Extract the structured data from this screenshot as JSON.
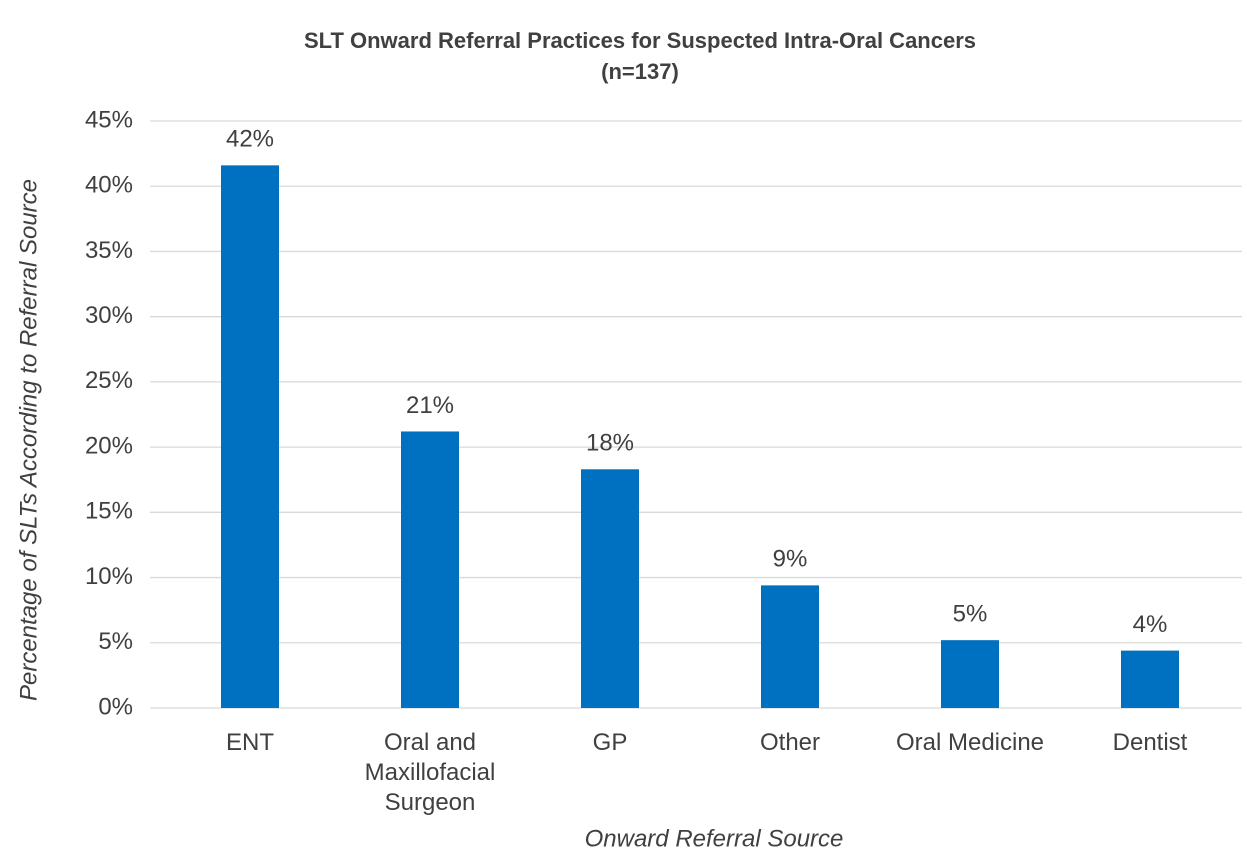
{
  "chart_data": {
    "type": "bar",
    "title": "SLT Onward Referral Practices for Suspected Intra-Oral Cancers",
    "subtitle": "(n=137)",
    "x_label": "Onward Referral Source",
    "y_label": "Percentage of SLTs According to Referral Source",
    "categories": [
      "ENT",
      "Oral and Maxillofacial Surgeon",
      "GP",
      "Other",
      "Oral Medicine",
      "Dentist"
    ],
    "values": [
      41.6,
      21.2,
      18.3,
      9.4,
      5.2,
      4.4
    ],
    "value_labels": [
      "42%",
      "21%",
      "18%",
      "9%",
      "5%",
      "4%"
    ],
    "color": "#0070c0",
    "ylim": [
      0,
      45
    ],
    "yticks": [
      {
        "value": 0,
        "label": "0%"
      },
      {
        "value": 5,
        "label": "5%"
      },
      {
        "value": 10,
        "label": "10%"
      },
      {
        "value": 15,
        "label": "15%"
      },
      {
        "value": 20,
        "label": "20%"
      },
      {
        "value": 25,
        "label": "25%"
      },
      {
        "value": 30,
        "label": "30%"
      },
      {
        "value": 35,
        "label": "35%"
      },
      {
        "value": 40,
        "label": "40%"
      },
      {
        "value": 45,
        "label": "45%"
      }
    ],
    "grid": true
  }
}
